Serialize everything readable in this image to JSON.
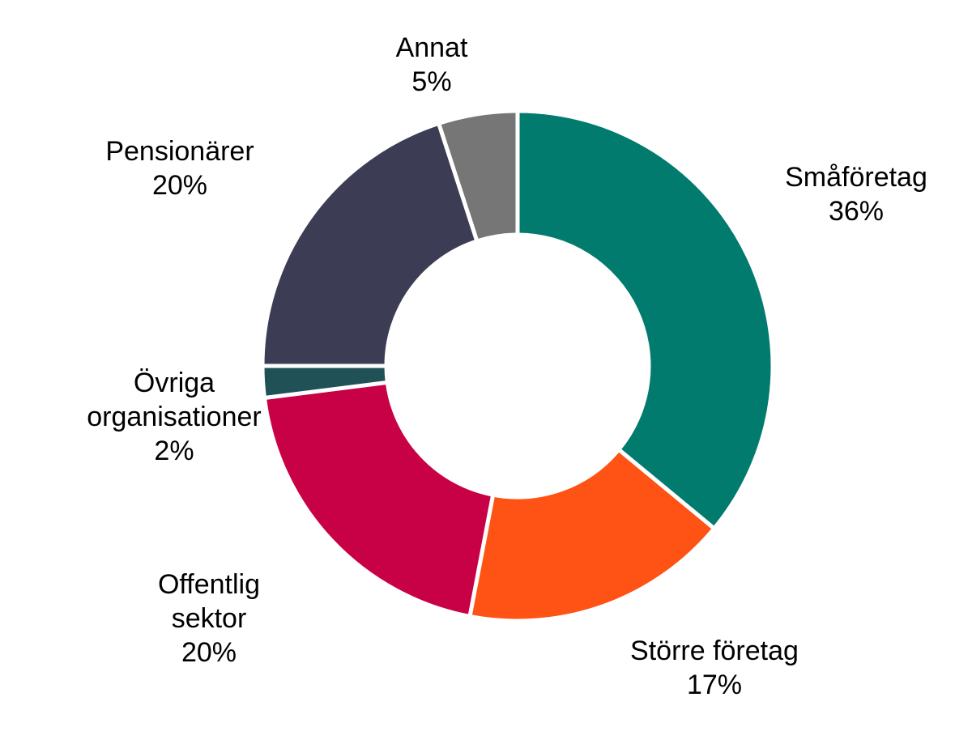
{
  "chart_data": {
    "type": "pie",
    "donut": true,
    "title": "",
    "legend": "none",
    "labels_position": "outside",
    "slices": [
      {
        "label": [
          "Småföretag"
        ],
        "percent_label": "36%",
        "value": 36,
        "color": "#007B6E"
      },
      {
        "label": [
          "Större företag"
        ],
        "percent_label": "17%",
        "value": 17,
        "color": "#FF5315"
      },
      {
        "label": [
          "Offentlig",
          "sektor"
        ],
        "percent_label": "20%",
        "value": 20,
        "color": "#C80045"
      },
      {
        "label": [
          "Övriga",
          "organisationer"
        ],
        "percent_label": "2%",
        "value": 2,
        "color": "#1F5157"
      },
      {
        "label": [
          "Pensionärer"
        ],
        "percent_label": "20%",
        "value": 20,
        "color": "#3C3D54"
      },
      {
        "label": [
          "Annat"
        ],
        "percent_label": "5%",
        "value": 5,
        "color": "#767676"
      }
    ]
  }
}
